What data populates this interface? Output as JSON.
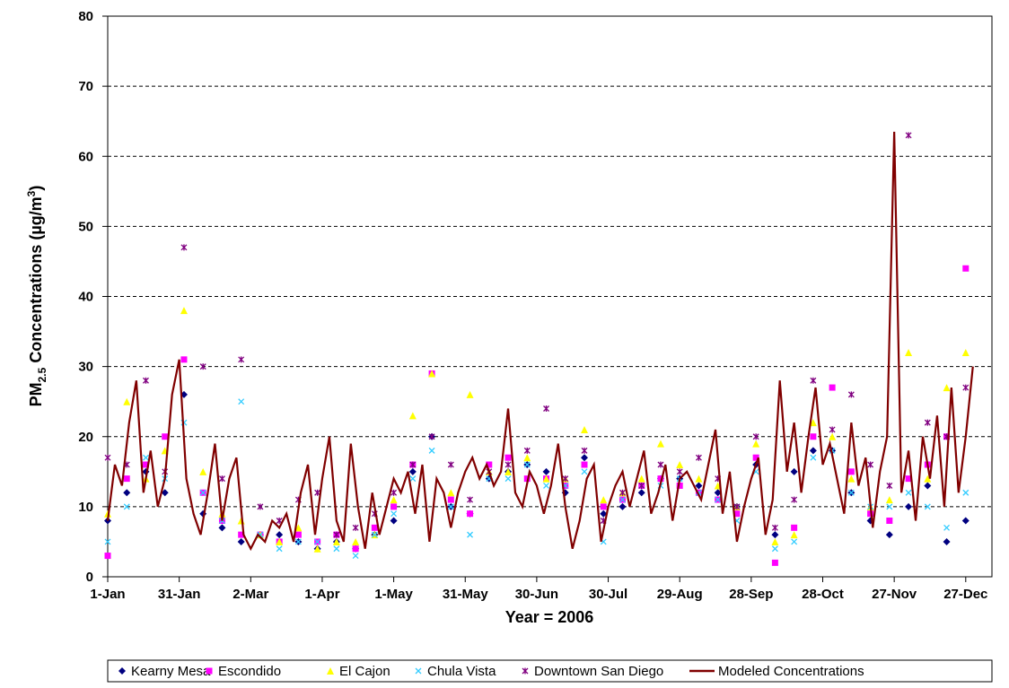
{
  "chart_data": {
    "type": "scatter-line",
    "x_label": "Year = 2006",
    "y_label": {
      "main": "PM",
      "sub": "2.5",
      "middle": " Concentrations (µg/m",
      "sup": "3",
      "end": ")"
    },
    "xlim": [
      1,
      372
    ],
    "ylim": [
      0,
      80
    ],
    "xticks": [
      {
        "value": 1,
        "label": "1-Jan"
      },
      {
        "value": 31,
        "label": "31-Jan"
      },
      {
        "value": 61,
        "label": "2-Mar"
      },
      {
        "value": 91,
        "label": "1-Apr"
      },
      {
        "value": 121,
        "label": "1-May"
      },
      {
        "value": 151,
        "label": "31-May"
      },
      {
        "value": 181,
        "label": "30-Jun"
      },
      {
        "value": 211,
        "label": "30-Jul"
      },
      {
        "value": 241,
        "label": "29-Aug"
      },
      {
        "value": 271,
        "label": "28-Sep"
      },
      {
        "value": 301,
        "label": "28-Oct"
      },
      {
        "value": 331,
        "label": "27-Nov"
      },
      {
        "value": 361,
        "label": "27-Dec"
      }
    ],
    "yticks": [
      0,
      10,
      20,
      30,
      40,
      50,
      60,
      70,
      80
    ],
    "grid": true,
    "legend": "bottom",
    "series": [
      {
        "name": "Kearny Mesa",
        "color": "#000080",
        "marker": "diamond",
        "x": [
          1,
          9,
          17,
          25,
          33,
          41,
          49,
          57,
          65,
          73,
          81,
          89,
          97,
          105,
          113,
          121,
          129,
          137,
          145,
          153,
          161,
          169,
          177,
          185,
          193,
          201,
          209,
          217,
          225,
          233,
          241,
          249,
          257,
          265,
          273,
          281,
          289,
          297,
          305,
          313,
          321,
          329,
          337,
          345,
          353,
          361
        ],
        "values": [
          8,
          12,
          15,
          12,
          26,
          9,
          7,
          5,
          6,
          6,
          5,
          4,
          5,
          4,
          6,
          8,
          15,
          20,
          10,
          9,
          14,
          15,
          16,
          15,
          12,
          17,
          9,
          10,
          12,
          14,
          14,
          13,
          12,
          10,
          16,
          6,
          15,
          18,
          18,
          12,
          8,
          6,
          10,
          13,
          5,
          8
        ]
      },
      {
        "name": "Escondido",
        "color": "#ff00ff",
        "marker": "square",
        "x": [
          1,
          9,
          17,
          25,
          33,
          41,
          49,
          57,
          65,
          73,
          81,
          89,
          97,
          105,
          113,
          121,
          129,
          137,
          145,
          153,
          161,
          169,
          177,
          185,
          193,
          201,
          209,
          217,
          225,
          233,
          241,
          249,
          257,
          265,
          273,
          281,
          289,
          297,
          305,
          313,
          321,
          329,
          337,
          345,
          353,
          361
        ],
        "values": [
          3,
          14,
          16,
          20,
          31,
          12,
          8,
          6,
          6,
          5,
          6,
          5,
          6,
          4,
          7,
          10,
          16,
          29,
          11,
          9,
          16,
          17,
          14,
          14,
          13,
          16,
          10,
          11,
          13,
          14,
          13,
          12,
          11,
          9,
          17,
          2,
          7,
          20,
          27,
          15,
          9,
          8,
          14,
          16,
          20,
          44
        ]
      },
      {
        "name": "El Cajon",
        "color": "#ffff00",
        "marker": "triangle",
        "x": [
          1,
          9,
          17,
          25,
          33,
          41,
          49,
          57,
          65,
          73,
          81,
          89,
          97,
          105,
          113,
          121,
          129,
          137,
          145,
          153,
          161,
          169,
          177,
          185,
          193,
          201,
          209,
          217,
          225,
          233,
          241,
          249,
          257,
          265,
          273,
          281,
          289,
          297,
          305,
          313,
          321,
          329,
          337,
          345,
          353,
          361
        ],
        "values": [
          9,
          25,
          14,
          18,
          38,
          15,
          9,
          8,
          6,
          5,
          7,
          4,
          5,
          5,
          6,
          11,
          23,
          29,
          12,
          26,
          15,
          15,
          17,
          14,
          14,
          21,
          11,
          12,
          14,
          19,
          16,
          14,
          13,
          10,
          19,
          5,
          6,
          22,
          20,
          14,
          10,
          11,
          32,
          14,
          27,
          32
        ]
      },
      {
        "name": "Chula Vista",
        "color": "#33ccff",
        "marker": "x",
        "x": [
          1,
          9,
          17,
          25,
          33,
          41,
          49,
          57,
          65,
          73,
          81,
          89,
          97,
          105,
          113,
          121,
          129,
          137,
          145,
          153,
          161,
          169,
          177,
          185,
          193,
          201,
          209,
          217,
          225,
          233,
          241,
          249,
          257,
          265,
          273,
          281,
          289,
          297,
          305,
          313,
          321,
          329,
          337,
          345,
          353,
          361
        ],
        "values": [
          5,
          10,
          17,
          14,
          22,
          12,
          8,
          25,
          6,
          4,
          5,
          5,
          4,
          3,
          6,
          9,
          14,
          18,
          10,
          6,
          14,
          14,
          16,
          13,
          13,
          15,
          5,
          11,
          13,
          13,
          14,
          12,
          11,
          8,
          15,
          4,
          5,
          17,
          18,
          12,
          10,
          10,
          12,
          10,
          7,
          12
        ]
      },
      {
        "name": "Downtown San Diego",
        "color": "#800080",
        "marker": "asterisk",
        "x": [
          1,
          9,
          17,
          25,
          33,
          41,
          49,
          57,
          65,
          73,
          81,
          89,
          97,
          105,
          113,
          121,
          129,
          137,
          145,
          153,
          161,
          169,
          177,
          185,
          193,
          201,
          209,
          217,
          225,
          233,
          241,
          249,
          257,
          265,
          273,
          281,
          289,
          297,
          305,
          313,
          321,
          329,
          337,
          345,
          353,
          361
        ],
        "values": [
          17,
          16,
          28,
          15,
          47,
          30,
          14,
          31,
          10,
          8,
          11,
          12,
          6,
          7,
          9,
          12,
          16,
          20,
          16,
          11,
          15,
          16,
          18,
          24,
          14,
          18,
          8,
          12,
          13,
          16,
          15,
          17,
          14,
          10,
          20,
          7,
          11,
          28,
          21,
          26,
          16,
          13,
          63,
          22,
          20,
          27
        ]
      },
      {
        "name": "Modeled Concentrations",
        "color": "#800000",
        "marker": "line",
        "x": [
          1,
          4,
          7,
          10,
          13,
          16,
          19,
          22,
          25,
          28,
          31,
          34,
          37,
          40,
          43,
          46,
          49,
          52,
          55,
          58,
          61,
          64,
          67,
          70,
          73,
          76,
          79,
          82,
          85,
          88,
          91,
          94,
          97,
          100,
          103,
          106,
          109,
          112,
          115,
          118,
          121,
          124,
          127,
          130,
          133,
          136,
          139,
          142,
          145,
          148,
          151,
          154,
          157,
          160,
          163,
          166,
          169,
          172,
          175,
          178,
          181,
          184,
          187,
          190,
          193,
          196,
          199,
          202,
          205,
          208,
          211,
          214,
          217,
          220,
          223,
          226,
          229,
          232,
          235,
          238,
          241,
          244,
          247,
          250,
          253,
          256,
          259,
          262,
          265,
          268,
          271,
          274,
          277,
          280,
          283,
          286,
          289,
          292,
          295,
          298,
          301,
          304,
          307,
          310,
          313,
          316,
          319,
          322,
          325,
          328,
          331,
          334,
          337,
          340,
          343,
          346,
          349,
          352,
          355,
          358,
          361,
          364
        ],
        "values": [
          8,
          16,
          13,
          22,
          28,
          12,
          18,
          10,
          14,
          26,
          31,
          14,
          9,
          6,
          12,
          19,
          8,
          14,
          17,
          6,
          4,
          6,
          5,
          8,
          7,
          9,
          5,
          12,
          16,
          6,
          14,
          20,
          8,
          5,
          19,
          10,
          4,
          12,
          6,
          10,
          14,
          12,
          15,
          9,
          16,
          5,
          14,
          12,
          7,
          12,
          15,
          17,
          14,
          16,
          13,
          15,
          24,
          12,
          10,
          15,
          13,
          9,
          13,
          19,
          10,
          4,
          8,
          14,
          16,
          5,
          10,
          13,
          15,
          10,
          14,
          18,
          9,
          12,
          16,
          8,
          14,
          15,
          13,
          11,
          16,
          21,
          9,
          15,
          5,
          10,
          14,
          17,
          6,
          11,
          28,
          15,
          22,
          12,
          20,
          27,
          16,
          19,
          14,
          9,
          22,
          13,
          17,
          7,
          15,
          20,
          63.5,
          12,
          18,
          8,
          20,
          14,
          23,
          10,
          27,
          12,
          20,
          30
        ]
      }
    ]
  }
}
